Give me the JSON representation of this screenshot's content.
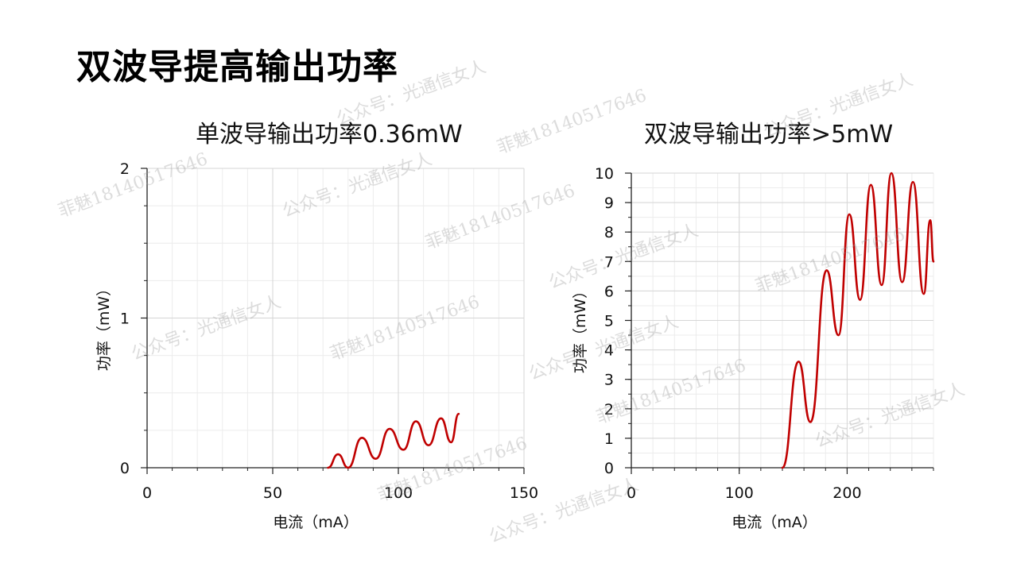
{
  "slide": {
    "title": "双波导提高输出功率"
  },
  "watermarks": [
    "公众号：光通信女人",
    "菲魅18140517646",
    "公众号：光通信女人",
    "菲魅18140517646",
    "公众号：光通信女人",
    "菲魅18140517646",
    "公众号：光通信女人",
    "菲魅18140517646",
    "公众号：光通信女人",
    "菲魅18140517646",
    "公众号：光通信女人",
    "菲魅18140517646",
    "公众号：光通信女人",
    "菲魅18140517646",
    "公众号：光通信女人"
  ],
  "chart_data": [
    {
      "type": "line",
      "title": "单波导输出功率0.36mW",
      "xlabel": "电流（mA）",
      "ylabel": "功率（mW）",
      "xlim": [
        0,
        150
      ],
      "ylim": [
        0,
        2
      ],
      "x_ticks": [
        0,
        50,
        100,
        150
      ],
      "y_ticks": [
        0,
        1,
        2
      ],
      "grid": true,
      "color": "#c00000",
      "series": [
        {
          "x": [
            72,
            76,
            80,
            85.5,
            91,
            96.5,
            102,
            107,
            112,
            117,
            121,
            124
          ],
          "y": [
            0,
            0.09,
            0,
            0.2,
            0.06,
            0.26,
            0.12,
            0.31,
            0.15,
            0.33,
            0.17,
            0.36
          ]
        }
      ]
    },
    {
      "type": "line",
      "title": "双波导输出功率>5mW",
      "xlabel": "电流（mA）",
      "ylabel": "功率（mW）",
      "xlim": [
        0,
        280
      ],
      "ylim": [
        0,
        10
      ],
      "x_ticks": [
        0,
        100,
        200
      ],
      "y_ticks": [
        0,
        1,
        2,
        3,
        4,
        5,
        6,
        7,
        8,
        9,
        10
      ],
      "grid": true,
      "color": "#c00000",
      "series": [
        {
          "x": [
            140,
            155,
            166,
            181,
            192,
            202,
            212,
            222,
            232,
            241,
            251,
            261,
            271,
            277,
            280
          ],
          "y": [
            0,
            3.6,
            1.55,
            6.7,
            4.5,
            8.6,
            5.7,
            9.6,
            6.2,
            10.0,
            6.3,
            9.7,
            5.9,
            8.4,
            7.0
          ]
        }
      ]
    }
  ]
}
